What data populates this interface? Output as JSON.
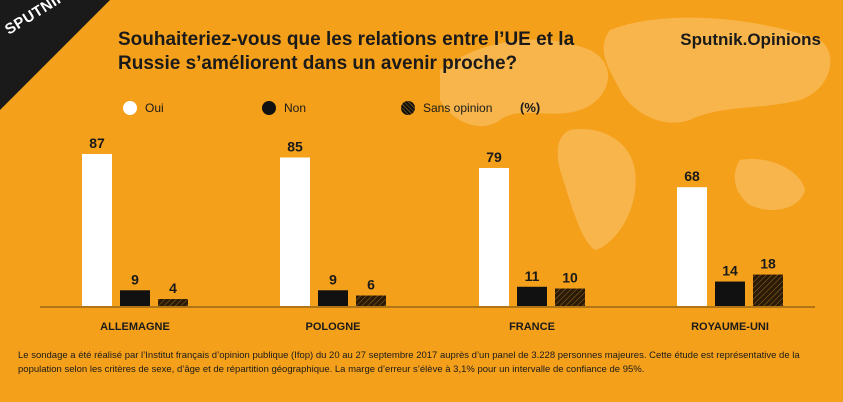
{
  "header": {
    "logo": "SPUTNIK",
    "title": "Souhaiteriez-vous que les relations entre l’UE et la Russie s’améliorent dans un avenir proche?",
    "brand": "Sputnik.Opinions"
  },
  "legend": {
    "oui": "Oui",
    "non": "Non",
    "sans_opinion": "Sans opinion",
    "unit": "(%)"
  },
  "chart_data": {
    "type": "bar",
    "title": "Souhaiteriez-vous que les relations entre l’UE et la Russie s’améliorent dans un avenir proche?",
    "categories": [
      "ALLEMAGNE",
      "POLOGNE",
      "FRANCE",
      "ROYAUME-UNI"
    ],
    "series": [
      {
        "name": "Oui",
        "values": [
          87,
          85,
          79,
          68
        ],
        "color": "#ffffff"
      },
      {
        "name": "Non",
        "values": [
          9,
          9,
          11,
          14
        ],
        "color": "#111111"
      },
      {
        "name": "Sans opinion",
        "values": [
          4,
          6,
          10,
          18
        ],
        "color": "hatched-dark"
      }
    ],
    "ylim": [
      0,
      87
    ],
    "grid": false,
    "legend_position": "top-left"
  },
  "footnote": "Le sondage a été réalisé par l’Institut français d’opinion publique (Ifop) du 20 au 27 septembre 2017 auprès d’un panel de 3.228 personnes majeures. Cette étude est représentative de la population selon les critères de sexe, d’âge et de répartition géographique. La marge d’erreur s’élève à 3,1% pour un intervalle de confiance de 95%."
}
